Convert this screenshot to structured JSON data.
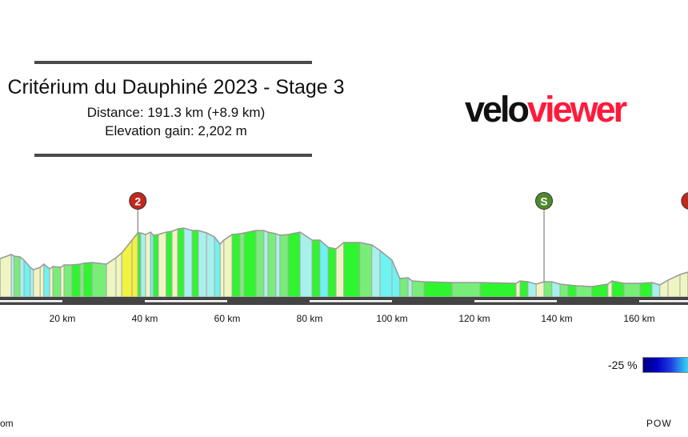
{
  "header": {
    "title": "Critérium du Dauphiné 2023 - Stage 3",
    "distance": "Distance: 191.3 km (+8.9 km)",
    "elevation_gain": "Elevation gain: 2,202 m"
  },
  "logo": {
    "part1": "velo",
    "part2": "viewer",
    "color1": "#111111",
    "color2": "#ff1a3c"
  },
  "legend": {
    "min_label": "-25 %",
    "gradient_colors": [
      "#000080",
      "#0000c0",
      "#2040e0",
      "#30c0f0",
      "#80fff0"
    ]
  },
  "footer": {
    "left": "om",
    "right": "POW"
  },
  "chart_data": {
    "type": "area",
    "title": "",
    "xlabel": "",
    "ylabel": "",
    "x_unit": "km",
    "x_ticks": [
      "20 km",
      "40 km",
      "60 km",
      "80 km",
      "100 km",
      "120 km",
      "140 km",
      "160 km"
    ],
    "x_tick_values": [
      20,
      40,
      60,
      80,
      100,
      120,
      140,
      160
    ],
    "xlim": [
      0,
      172
    ],
    "profile_km": [
      4.9,
      7.6,
      8.3,
      9.7,
      10.7,
      12.2,
      13.0,
      14.6,
      15.5,
      16.9,
      17.7,
      19.6,
      20.4,
      22.3,
      24.3,
      25.2,
      27.2,
      30.7,
      33.0,
      34.4,
      36.9,
      38.3,
      39.0,
      40.2,
      41.4,
      42.1,
      43.3,
      45.2,
      46.6,
      48.0,
      49.5,
      51.5,
      53.0,
      55.0,
      56.9,
      58.3,
      59.2,
      61.2,
      63.1,
      64.1,
      67.0,
      68.9,
      69.9,
      71.8,
      72.8,
      74.8,
      77.7,
      80.6,
      82.5,
      84.5,
      86.4,
      88.3,
      92.2,
      95.1,
      97.1,
      100.0,
      101.9,
      103.9,
      104.9,
      107.8,
      114.6,
      121.4,
      130.1,
      131.1,
      133.0,
      135.0,
      136.9,
      138.8,
      140.8,
      142.7,
      144.7,
      148.5,
      152.4,
      153.4,
      156.3,
      160.2,
      163.1,
      165.0,
      167.0,
      169.9,
      171.8
    ],
    "profile_relative_elevation": [
      48,
      53,
      51,
      50,
      46,
      37,
      34,
      37,
      41,
      35,
      38,
      37,
      40,
      40,
      41,
      42,
      43,
      41,
      49,
      55,
      71,
      80,
      80,
      78,
      81,
      77,
      78,
      81,
      82,
      85,
      86,
      83,
      83,
      80,
      75,
      66,
      71,
      78,
      79,
      80,
      83,
      83,
      81,
      79,
      77,
      78,
      81,
      71,
      71,
      62,
      60,
      68,
      68,
      65,
      58,
      46,
      23,
      24,
      20,
      19,
      18,
      18,
      17,
      20,
      19,
      16,
      19,
      19,
      16,
      15,
      14,
      13,
      16,
      20,
      17,
      17,
      18,
      15,
      21,
      28,
      31
    ],
    "gradient_colors": {
      "descent_steep": "#6ef2f2",
      "descent": "#a8f0ec",
      "flat": "#2ef52e",
      "flat_alt": "#78ee78",
      "rise": "#eef5c0",
      "rise_steep": "#f2f240"
    },
    "markers": [
      {
        "label": "2",
        "km": 38.3,
        "color": "#c0281e",
        "type": "climb"
      },
      {
        "label": "S",
        "km": 136.9,
        "color": "#4f8a2a",
        "type": "sprint"
      },
      {
        "label": "",
        "km": 172.3,
        "color": "#c0281e",
        "type": "climb"
      }
    ],
    "distance_band_colors": {
      "band": "#444444",
      "dash": "#ffffff",
      "outline": "#aaaaaa"
    }
  }
}
